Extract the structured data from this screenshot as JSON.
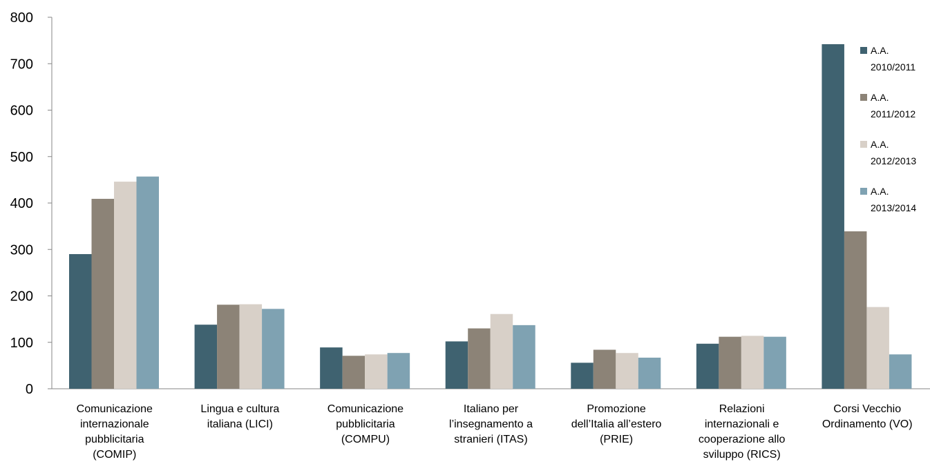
{
  "chart_data": {
    "type": "bar",
    "categories": [
      [
        "Comunicazione",
        "internazionale",
        "pubblicitaria",
        "(COMIP)"
      ],
      [
        "Lingua e cultura",
        "italiana (LICI)"
      ],
      [
        "Comunicazione",
        "pubblicitaria",
        "(COMPU)"
      ],
      [
        "Italiano per",
        "l’insegnamento a",
        "stranieri (ITAS)"
      ],
      [
        "Promozione",
        "dell’Italia all’estero",
        "(PRIE)"
      ],
      [
        "Relazioni",
        "internazionali e",
        "cooperazione allo",
        "sviluppo (RICS)"
      ],
      [
        "Corsi Vecchio",
        "Ordinamento (VO)"
      ]
    ],
    "series": [
      {
        "name": [
          "A.A.",
          "2010/2011"
        ],
        "color": "#3F6270",
        "values": [
          290,
          138,
          89,
          102,
          56,
          97,
          742
        ]
      },
      {
        "name": [
          "A.A.",
          "2011/2012"
        ],
        "color": "#8C8377",
        "values": [
          409,
          181,
          71,
          130,
          84,
          112,
          339
        ]
      },
      {
        "name": [
          "A.A.",
          "2012/2013"
        ],
        "color": "#D8D0C8",
        "values": [
          446,
          182,
          74,
          161,
          77,
          114,
          176
        ]
      },
      {
        "name": [
          "A.A.",
          "2013/2014"
        ],
        "color": "#7FA2B2",
        "values": [
          457,
          172,
          77,
          137,
          67,
          112,
          74
        ]
      }
    ],
    "ylim": [
      0,
      800
    ],
    "yticks": [
      0,
      100,
      200,
      300,
      400,
      500,
      600,
      700,
      800
    ],
    "grid": false,
    "legend_position": "right"
  }
}
